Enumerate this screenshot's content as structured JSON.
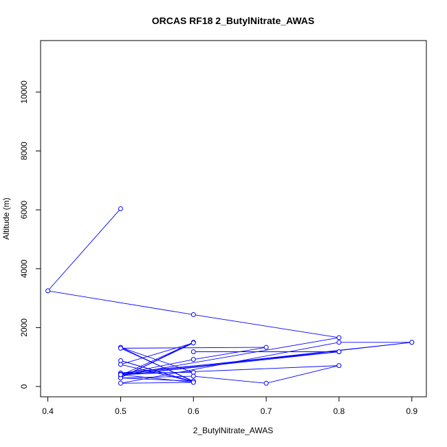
{
  "chart_data": {
    "type": "line",
    "title": "ORCAS RF18 2_ButylNitrate_AWAS",
    "xlabel": "2_ButylNitrate_AWAS",
    "ylabel": "Altitude (m)",
    "xlim": [
      0.39,
      0.92
    ],
    "ylim": [
      -350,
      11750
    ],
    "xticks": [
      0.4,
      0.5,
      0.6,
      0.7,
      0.8,
      0.9
    ],
    "xtick_labels": [
      "0.4",
      "0.5",
      "0.6",
      "0.7",
      "0.8",
      "0.9"
    ],
    "yticks": [
      0,
      2000,
      4000,
      6000,
      8000,
      10000
    ],
    "ytick_labels": [
      "0",
      "2000",
      "4000",
      "6000",
      "8000",
      "10000"
    ],
    "grid": false,
    "line_color": "#0000ff",
    "points": [
      {
        "x": 0.5,
        "y": 6040
      },
      {
        "x": 0.4,
        "y": 3250
      },
      {
        "x": 0.6,
        "y": 2440
      },
      {
        "x": 0.8,
        "y": 1660
      },
      {
        "x": 0.5,
        "y": 380
      },
      {
        "x": 0.6,
        "y": 1500
      },
      {
        "x": 0.5,
        "y": 300
      },
      {
        "x": 0.6,
        "y": 1480
      },
      {
        "x": 0.5,
        "y": 750
      },
      {
        "x": 0.6,
        "y": 160
      },
      {
        "x": 0.5,
        "y": 880
      },
      {
        "x": 0.6,
        "y": 160
      },
      {
        "x": 0.5,
        "y": 1330
      },
      {
        "x": 0.6,
        "y": 480
      },
      {
        "x": 0.5,
        "y": 460
      },
      {
        "x": 0.8,
        "y": 1180
      },
      {
        "x": 0.6,
        "y": 1180
      },
      {
        "x": 0.8,
        "y": 1180
      },
      {
        "x": 0.5,
        "y": 380
      },
      {
        "x": 0.9,
        "y": 1500
      },
      {
        "x": 0.5,
        "y": 420
      },
      {
        "x": 0.6,
        "y": 920
      },
      {
        "x": 0.7,
        "y": 1330
      },
      {
        "x": 0.5,
        "y": 1300
      },
      {
        "x": 0.6,
        "y": 180
      },
      {
        "x": 0.5,
        "y": 290
      },
      {
        "x": 0.6,
        "y": 350
      },
      {
        "x": 0.7,
        "y": 110
      },
      {
        "x": 0.8,
        "y": 710
      },
      {
        "x": 0.5,
        "y": 400
      },
      {
        "x": 0.6,
        "y": 140
      },
      {
        "x": 0.5,
        "y": 110
      },
      {
        "x": 0.8,
        "y": 1500
      },
      {
        "x": 0.9,
        "y": 1500
      }
    ]
  }
}
